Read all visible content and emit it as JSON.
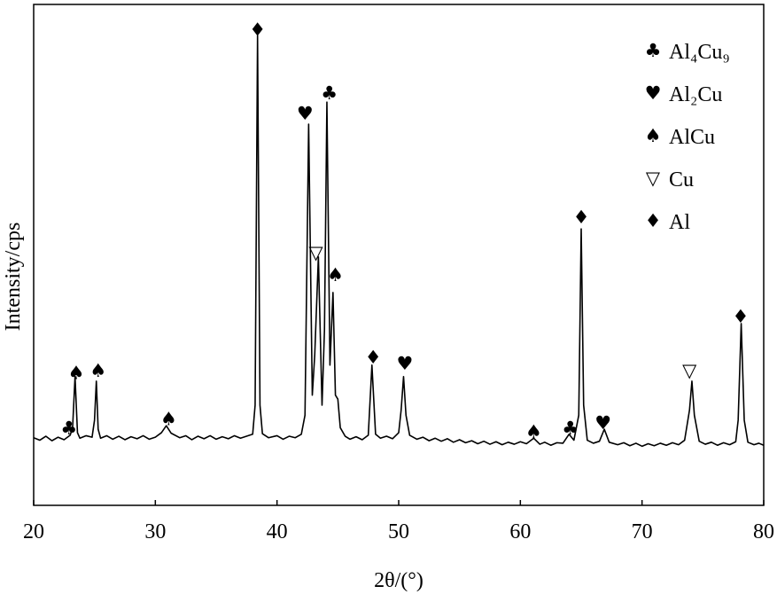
{
  "chart_data": {
    "type": "line",
    "x_label": "2θ/(°)",
    "y_label": "Intensity/cps",
    "xlim": [
      20,
      80
    ],
    "xticks": [
      20,
      30,
      40,
      50,
      60,
      70,
      80
    ],
    "ylim": [
      0,
      100
    ],
    "color": "#000000",
    "x": [
      20,
      20.5,
      21,
      21.5,
      22,
      22.5,
      23,
      23.2,
      23.4,
      23.6,
      23.8,
      24.3,
      24.8,
      25.0,
      25.15,
      25.3,
      25.5,
      26,
      26.5,
      27,
      27.5,
      28,
      28.5,
      29,
      29.5,
      30,
      30.5,
      30.9,
      31.3,
      32,
      32.5,
      33,
      33.5,
      34,
      34.5,
      35,
      35.5,
      36,
      36.5,
      37,
      37.5,
      38,
      38.2,
      38.4,
      38.6,
      38.8,
      39.3,
      40,
      40.5,
      41,
      41.5,
      42,
      42.3,
      42.6,
      42.9,
      43.1,
      43.4,
      43.7,
      43.9,
      44.1,
      44.35,
      44.6,
      44.8,
      45.0,
      45.2,
      45.6,
      46,
      46.5,
      47,
      47.5,
      47.8,
      48.1,
      48.5,
      49,
      49.5,
      50,
      50.2,
      50.4,
      50.6,
      50.9,
      51.5,
      52,
      52.5,
      53,
      53.5,
      54,
      54.5,
      55,
      55.5,
      56,
      56.5,
      57,
      57.5,
      58,
      58.5,
      59,
      59.5,
      60,
      60.5,
      61.1,
      61.6,
      62,
      62.5,
      63,
      63.5,
      64.0,
      64.4,
      64.8,
      65.0,
      65.2,
      65.5,
      66,
      66.5,
      66.9,
      67.3,
      68,
      68.5,
      69,
      69.5,
      70,
      70.5,
      71,
      71.5,
      72,
      72.5,
      73,
      73.5,
      73.9,
      74.1,
      74.3,
      74.7,
      75.2,
      75.7,
      76.2,
      76.7,
      77.2,
      77.7,
      77.9,
      78.15,
      78.4,
      78.7,
      79.2,
      79.6,
      80
    ],
    "values": [
      13.5,
      13.0,
      13.8,
      12.9,
      13.6,
      13.1,
      14.0,
      15.5,
      25.7,
      14.5,
      13.4,
      13.9,
      13.6,
      17,
      24.8,
      15.2,
      13.4,
      13.9,
      13.2,
      13.8,
      13.1,
      13.7,
      13.3,
      13.9,
      13.2,
      13.6,
      14.5,
      15.9,
      14.4,
      13.5,
      13.9,
      13.1,
      13.8,
      13.3,
      13.9,
      13.2,
      13.7,
      13.3,
      13.9,
      13.4,
      13.8,
      14.2,
      20,
      93.8,
      20,
      14.3,
      13.5,
      13.9,
      13.2,
      13.8,
      13.5,
      14.2,
      18,
      76.1,
      22,
      30,
      49.6,
      20,
      35,
      80.5,
      28,
      42.5,
      22,
      21.2,
      15.5,
      13.8,
      13.2,
      13.7,
      13.1,
      14,
      28,
      14.2,
      13.4,
      13.8,
      13.3,
      14.5,
      19,
      25.7,
      18,
      14,
      13.2,
      13.6,
      12.9,
      13.4,
      12.8,
      13.3,
      12.6,
      13.1,
      12.5,
      12.9,
      12.3,
      12.8,
      12.2,
      12.7,
      12.1,
      12.6,
      12.2,
      12.7,
      12.3,
      13.4,
      12.2,
      12.6,
      12.0,
      12.5,
      12.4,
      14.2,
      13.0,
      18,
      55.2,
      20,
      13,
      12.4,
      12.8,
      15.2,
      12.6,
      12.1,
      12.5,
      11.9,
      12.4,
      11.8,
      12.3,
      11.9,
      12.4,
      12.0,
      12.5,
      12.1,
      13.0,
      19,
      24.8,
      18,
      12.8,
      12.2,
      12.6,
      12.0,
      12.5,
      12.1,
      12.7,
      17,
      36.3,
      17,
      12.6,
      12.1,
      12.4,
      12.0
    ],
    "phases": [
      {
        "name": "Al₄Cu₉",
        "symbol": "♣",
        "peaks_x": [
          22.9,
          44.3,
          64.1
        ],
        "peaks_y": [
          15.4,
          82.3,
          15.4
        ]
      },
      {
        "name": "Al₂Cu",
        "symbol": "♥",
        "peaks_x": [
          42.3,
          50.5,
          66.8
        ],
        "peaks_y": [
          78.2,
          28.3,
          16.5
        ]
      },
      {
        "name": "AlCu",
        "symbol": "♠",
        "peaks_x": [
          23.5,
          25.3,
          31.1,
          44.8,
          61.1
        ],
        "peaks_y": [
          26.5,
          26.9,
          17.3,
          46.0,
          14.7
        ]
      },
      {
        "name": "Cu",
        "symbol": "▽",
        "peaks_x": [
          43.2,
          73.9
        ],
        "peaks_y": [
          50.4,
          26.9
        ]
      },
      {
        "name": "Al",
        "symbol": "♦",
        "peaks_x": [
          38.4,
          47.9,
          65.0,
          78.1
        ],
        "peaks_y": [
          95.0,
          29.6,
          57.5,
          37.7
        ]
      }
    ]
  }
}
